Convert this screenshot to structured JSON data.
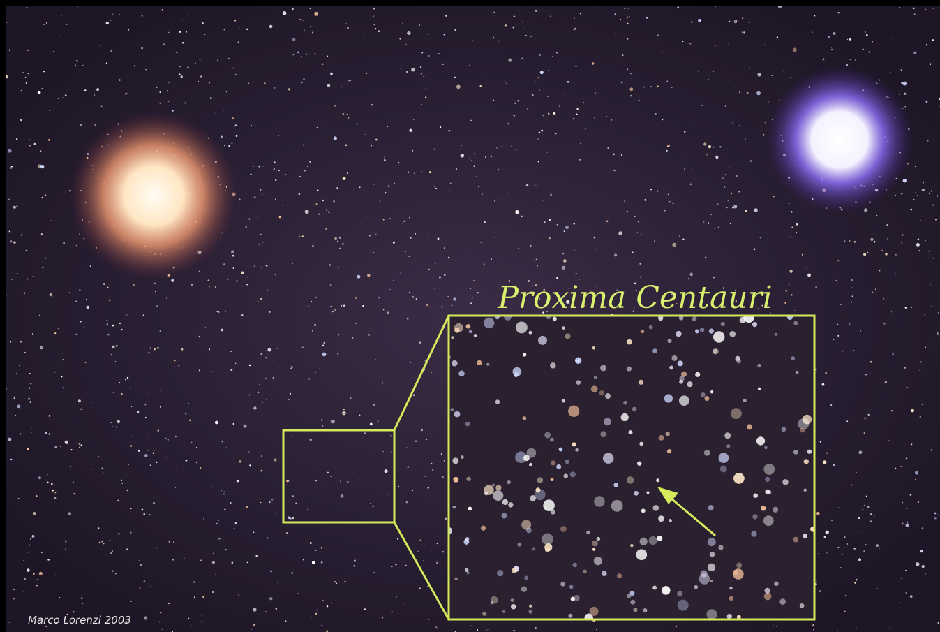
{
  "title": "Proxima Centauri",
  "credit": "Marco Lorenzi 2003"
}
